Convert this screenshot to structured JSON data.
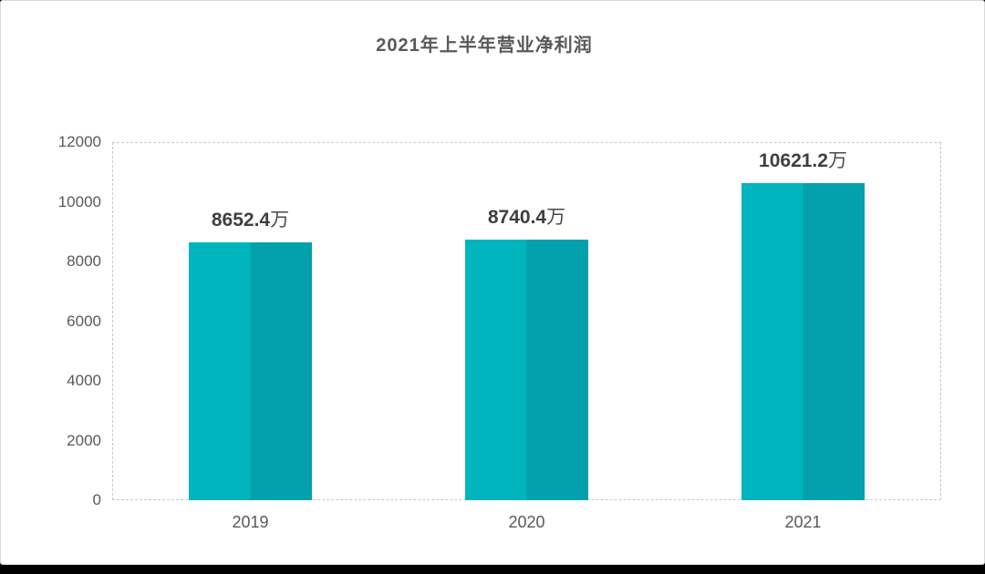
{
  "title": "2021年上半年营业净利润",
  "footer_color": "#000000",
  "chart_data": {
    "type": "bar",
    "title": "2021年上半年营业净利润",
    "categories": [
      "2019",
      "2020",
      "2021"
    ],
    "values": [
      8652.4,
      8740.4,
      10621.2
    ],
    "value_labels": [
      "8652.4万",
      "8740.4万",
      "10621.2万"
    ],
    "unit": "万",
    "xlabel": "",
    "ylabel": "",
    "ylim": [
      0,
      12000
    ],
    "yticks": [
      0,
      2000,
      4000,
      6000,
      8000,
      10000,
      12000
    ],
    "grid": "dashed-border-only",
    "legend": "none",
    "bar_color_left": "#00b5bd",
    "bar_color_right": "#04a0ab",
    "value_label_color": "#3f3f3f",
    "axis_text_color": "#595959",
    "border_color": "#c9c9c9"
  }
}
